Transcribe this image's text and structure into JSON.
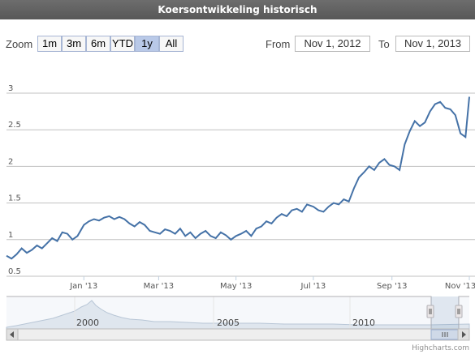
{
  "header": {
    "title": "Koersontwikkeling historisch"
  },
  "range_selector": {
    "zoom_label": "Zoom",
    "buttons": [
      "1m",
      "3m",
      "6m",
      "YTD",
      "1y",
      "All"
    ],
    "active": "1y",
    "from_label": "From",
    "from_value": "Nov 1, 2012",
    "to_label": "To",
    "to_value": "Nov 1, 2013"
  },
  "chart_data": {
    "type": "line",
    "title": "Koersontwikkeling historisch",
    "xlabel": "",
    "ylabel": "",
    "ylim": [
      0.5,
      3.0
    ],
    "yticks": [
      "0.5",
      "1",
      "1.5",
      "2",
      "2.5",
      "3"
    ],
    "xticks": [
      "Jan '13",
      "Mar '13",
      "May '13",
      "Jul '13",
      "Sep '13",
      "Nov '13"
    ],
    "xtick_dates": [
      "2013-01-01",
      "2013-03-01",
      "2013-05-01",
      "2013-07-01",
      "2013-09-01",
      "2013-11-01"
    ],
    "x_range": [
      "2012-11-01",
      "2013-11-01"
    ],
    "grid": true,
    "line_color": "#4572a7",
    "series": [
      {
        "x": [
          "2012-11-01",
          "2012-11-05",
          "2012-11-09",
          "2012-11-13",
          "2012-11-17",
          "2012-11-21",
          "2012-11-25",
          "2012-11-29",
          "2012-12-03",
          "2012-12-07",
          "2012-12-11",
          "2012-12-15",
          "2012-12-19",
          "2012-12-23",
          "2012-12-27",
          "2013-01-01",
          "2013-01-05",
          "2013-01-09",
          "2013-01-13",
          "2013-01-17",
          "2013-01-21",
          "2013-01-25",
          "2013-01-29",
          "2013-02-02",
          "2013-02-06",
          "2013-02-10",
          "2013-02-14",
          "2013-02-18",
          "2013-02-22",
          "2013-02-26",
          "2013-03-02",
          "2013-03-06",
          "2013-03-10",
          "2013-03-14",
          "2013-03-18",
          "2013-03-22",
          "2013-03-26",
          "2013-03-30",
          "2013-04-03",
          "2013-04-07",
          "2013-04-11",
          "2013-04-15",
          "2013-04-19",
          "2013-04-23",
          "2013-04-27",
          "2013-05-01",
          "2013-05-05",
          "2013-05-09",
          "2013-05-13",
          "2013-05-17",
          "2013-05-21",
          "2013-05-25",
          "2013-05-29",
          "2013-06-02",
          "2013-06-06",
          "2013-06-10",
          "2013-06-14",
          "2013-06-18",
          "2013-06-22",
          "2013-06-26",
          "2013-07-01",
          "2013-07-05",
          "2013-07-09",
          "2013-07-13",
          "2013-07-17",
          "2013-07-21",
          "2013-07-25",
          "2013-07-29",
          "2013-08-02",
          "2013-08-06",
          "2013-08-10",
          "2013-08-14",
          "2013-08-18",
          "2013-08-22",
          "2013-08-26",
          "2013-08-30",
          "2013-09-03",
          "2013-09-07",
          "2013-09-11",
          "2013-09-15",
          "2013-09-19",
          "2013-09-23",
          "2013-09-27",
          "2013-10-01",
          "2013-10-05",
          "2013-10-09",
          "2013-10-13",
          "2013-10-17",
          "2013-10-21",
          "2013-10-25",
          "2013-10-29",
          "2013-11-01"
        ],
        "values": [
          0.78,
          0.74,
          0.8,
          0.88,
          0.82,
          0.86,
          0.92,
          0.88,
          0.95,
          1.02,
          0.98,
          1.1,
          1.08,
          1.0,
          1.05,
          1.2,
          1.25,
          1.28,
          1.26,
          1.3,
          1.32,
          1.28,
          1.31,
          1.28,
          1.22,
          1.18,
          1.24,
          1.2,
          1.12,
          1.1,
          1.08,
          1.14,
          1.12,
          1.08,
          1.15,
          1.05,
          1.1,
          1.02,
          1.08,
          1.12,
          1.05,
          1.02,
          1.1,
          1.06,
          1.0,
          1.05,
          1.08,
          1.12,
          1.05,
          1.15,
          1.18,
          1.25,
          1.22,
          1.3,
          1.35,
          1.32,
          1.4,
          1.42,
          1.38,
          1.48,
          1.45,
          1.4,
          1.38,
          1.45,
          1.5,
          1.48,
          1.55,
          1.52,
          1.7,
          1.85,
          1.92,
          2.0,
          1.95,
          2.05,
          2.1,
          2.02,
          2.0,
          1.95,
          2.3,
          2.48,
          2.62,
          2.55,
          2.6,
          2.75,
          2.85,
          2.88,
          2.8,
          2.78,
          2.7,
          2.45,
          2.4,
          2.95
        ]
      }
    ]
  },
  "navigator": {
    "labels": [
      "2000",
      "2005",
      "2010"
    ],
    "credits": "Highcharts.com"
  }
}
